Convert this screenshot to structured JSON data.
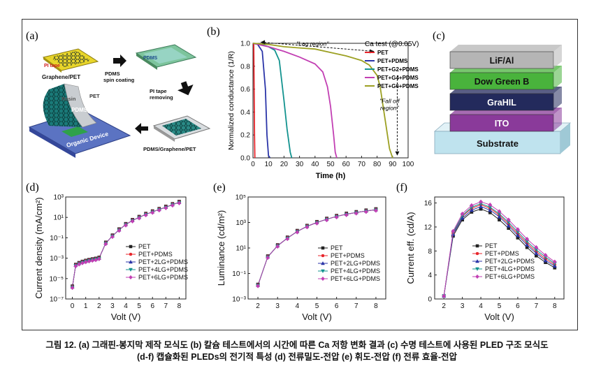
{
  "caption": {
    "line1": "그림 12. (a) 그래핀-봉지막 제작 모식도 (b) 칼슘 테스트에서의 시간에 따른 Ca 저항 변화 결과 (c) 수명 테스트에 사용된 PLED 구조 모식도",
    "line2": "(d-f) 캡슐화된 PLEDs의 전기적 특성 (d) 전류밀도-전압 (e) 휘도-전압 (f) 전류 효율-전압"
  },
  "panel_a": {
    "label": "(a)",
    "pi_tape": "PI tape",
    "graphene_pet": "Graphene/PET",
    "pdms": "PDMS",
    "spin_coating": "PDMS\nspin coating",
    "pi_tape_removing": "PI tape\nremoving",
    "pdms_graphene_pet": "PDMS/Graphene/PET",
    "resin": "Resin",
    "pet": "PET",
    "pdms2": "PDMS",
    "organic_device": "Organic Device"
  },
  "panel_c": {
    "label": "(c)",
    "layers": [
      {
        "name": "LiF/Al",
        "color": "#b5b5b5"
      },
      {
        "name": "Dow Green B",
        "color": "#49b33c"
      },
      {
        "name": "GraHIL",
        "color": "#232a5c"
      },
      {
        "name": "ITO",
        "color": "#8a3a9a"
      },
      {
        "name": "Substrate",
        "color": "#bfe3ee"
      }
    ]
  },
  "chart_data": [
    {
      "id": "b",
      "label": "(b)",
      "type": "line",
      "xlabel": "Time (h)",
      "ylabel": "Normalized conductance (1/R)",
      "xlim": [
        0,
        100
      ],
      "ylim": [
        0,
        1.0
      ],
      "xticks": [
        0,
        10,
        20,
        30,
        40,
        50,
        60,
        70,
        80,
        90,
        100
      ],
      "yticks": [
        0.0,
        0.2,
        0.4,
        0.6,
        0.8,
        1.0
      ],
      "legend_title": "Ca test (@0.05V)",
      "legend_position": "top-right",
      "annotations": [
        "\"Lag region\"",
        "\"Fall off\nregion\""
      ],
      "series": [
        {
          "name": "PET",
          "color": "#e8262c",
          "x": [
            0,
            0.5,
            1,
            1.2
          ],
          "y": [
            1.0,
            0.99,
            0.2,
            0.0
          ]
        },
        {
          "name": "PET+PDMS",
          "color": "#2b35a8",
          "x": [
            0,
            3,
            6,
            8,
            9,
            10,
            11
          ],
          "y": [
            1.0,
            0.99,
            0.93,
            0.6,
            0.2,
            0.02,
            0.0
          ]
        },
        {
          "name": "PET+G2+PDMS",
          "color": "#13938f",
          "x": [
            0,
            5,
            10,
            14,
            17,
            20,
            22,
            24,
            25
          ],
          "y": [
            1.0,
            0.99,
            0.97,
            0.94,
            0.85,
            0.5,
            0.25,
            0.05,
            0.0
          ]
        },
        {
          "name": "PET+G4+PDMS",
          "color": "#c23fb3",
          "x": [
            0,
            10,
            20,
            30,
            40,
            45,
            48,
            50,
            52,
            53,
            54
          ],
          "y": [
            1.0,
            0.97,
            0.93,
            0.88,
            0.82,
            0.75,
            0.62,
            0.45,
            0.2,
            0.05,
            0.0
          ]
        },
        {
          "name": "PET+G6+PDMS",
          "color": "#9ca022",
          "x": [
            0,
            10,
            20,
            30,
            40,
            50,
            60,
            70,
            75,
            80,
            82,
            85,
            88,
            90
          ],
          "y": [
            1.0,
            0.99,
            0.97,
            0.96,
            0.95,
            0.92,
            0.89,
            0.85,
            0.81,
            0.72,
            0.62,
            0.35,
            0.08,
            0.0
          ]
        }
      ]
    },
    {
      "id": "d",
      "label": "(d)",
      "type": "line",
      "xlabel": "Volt (V)",
      "ylabel": "Current density (mA/cm²)",
      "y_scale": "log",
      "xlim": [
        -0.5,
        8.5
      ],
      "ylim": [
        1e-07,
        1000
      ],
      "xticks": [
        0,
        1,
        2,
        3,
        4,
        5,
        6,
        7,
        8
      ],
      "yticks": [
        "10⁻⁷",
        "10⁻⁵",
        "10⁻³",
        "10⁻¹",
        "10¹",
        "10³"
      ],
      "legend_position": "center-right",
      "series": [
        {
          "name": "PET",
          "color": "#222222",
          "marker": "square"
        },
        {
          "name": "PET+PDMS",
          "color": "#e8262c",
          "marker": "circle"
        },
        {
          "name": "PET+2LG+PDMS",
          "color": "#2b35a8",
          "marker": "triangle-up"
        },
        {
          "name": "PET+4LG+PDMS",
          "color": "#13938f",
          "marker": "triangle-down"
        },
        {
          "name": "PET+6LG+PDMS",
          "color": "#c23fb3",
          "marker": "diamond"
        }
      ],
      "x": [
        0,
        0.25,
        0.5,
        0.75,
        1,
        1.25,
        1.5,
        1.75,
        2,
        2.5,
        3,
        3.5,
        4,
        4.5,
        5,
        5.5,
        6,
        6.5,
        7,
        7.5,
        8
      ],
      "y": [
        1.5e-06,
        0.0002,
        0.0003,
        0.0004,
        0.0005,
        0.0006,
        0.0007,
        0.0008,
        0.001,
        0.03,
        0.15,
        0.6,
        2,
        5,
        10,
        20,
        35,
        60,
        100,
        180,
        300
      ]
    },
    {
      "id": "e",
      "label": "(e)",
      "type": "line",
      "xlabel": "Volt (V)",
      "ylabel": "Luminance (cd/m²)",
      "y_scale": "log",
      "xlim": [
        1.5,
        8.5
      ],
      "ylim": [
        0.001,
        100000
      ],
      "xticks": [
        2,
        3,
        4,
        5,
        6,
        7,
        8
      ],
      "yticks": [
        "10⁻³",
        "10⁻¹",
        "10¹",
        "10³",
        "10⁵"
      ],
      "legend_position": "bottom-left",
      "series": [
        {
          "name": "PET",
          "color": "#222222",
          "marker": "square"
        },
        {
          "name": "PET+PDMS",
          "color": "#e8262c",
          "marker": "circle"
        },
        {
          "name": "PET+2LG+PDMS",
          "color": "#2b35a8",
          "marker": "triangle-up"
        },
        {
          "name": "PET+4LG+PDMS",
          "color": "#13938f",
          "marker": "triangle-down"
        },
        {
          "name": "PET+6LG+PDMS",
          "color": "#c23fb3",
          "marker": "diamond"
        }
      ],
      "x": [
        2,
        2.5,
        3,
        3.5,
        4,
        4.5,
        5,
        5.5,
        6,
        6.5,
        7,
        7.5,
        8
      ],
      "y": [
        0.012,
        2,
        15,
        60,
        200,
        500,
        1000,
        1800,
        3000,
        4500,
        6000,
        8000,
        10000
      ]
    },
    {
      "id": "f",
      "label": "(f)",
      "type": "line",
      "xlabel": "Volt (V)",
      "ylabel": "Current eff. (cd/A)",
      "xlim": [
        1.5,
        8.5
      ],
      "ylim": [
        0,
        17
      ],
      "xticks": [
        2,
        3,
        4,
        5,
        6,
        7,
        8
      ],
      "yticks": [
        0,
        4,
        8,
        12,
        16
      ],
      "legend_position": "bottom-center",
      "x": [
        2,
        2.5,
        3,
        3.5,
        4,
        4.5,
        5,
        5.5,
        6,
        6.5,
        7,
        7.5,
        8
      ],
      "series": [
        {
          "name": "PET",
          "color": "#222222",
          "marker": "square",
          "y": [
            0.5,
            10.5,
            13.2,
            14.5,
            15.0,
            14.4,
            13.2,
            11.8,
            10.2,
            8.6,
            7.2,
            6.1,
            5.2
          ]
        },
        {
          "name": "PET+PDMS",
          "color": "#e8262c",
          "marker": "circle",
          "y": [
            0.5,
            11.0,
            13.8,
            15.1,
            15.7,
            15.1,
            14.0,
            12.5,
            10.9,
            9.3,
            7.9,
            6.7,
            5.7
          ]
        },
        {
          "name": "PET+2LG+PDMS",
          "color": "#2b35a8",
          "marker": "triangle-up",
          "y": [
            0.5,
            10.8,
            13.5,
            14.8,
            15.4,
            14.8,
            13.7,
            12.2,
            10.6,
            9.0,
            7.6,
            6.4,
            5.5
          ]
        },
        {
          "name": "PET+4LG+PDMS",
          "color": "#13938f",
          "marker": "triangle-down",
          "y": [
            0.5,
            11.1,
            13.9,
            15.3,
            15.9,
            15.3,
            14.2,
            12.8,
            11.2,
            9.6,
            8.2,
            7.0,
            5.9
          ]
        },
        {
          "name": "PET+6LG+PDMS",
          "color": "#c23fb3",
          "marker": "diamond",
          "y": [
            0.5,
            11.3,
            14.2,
            15.6,
            16.2,
            15.7,
            14.6,
            13.2,
            11.6,
            10.0,
            8.6,
            7.3,
            6.2
          ]
        }
      ]
    }
  ]
}
